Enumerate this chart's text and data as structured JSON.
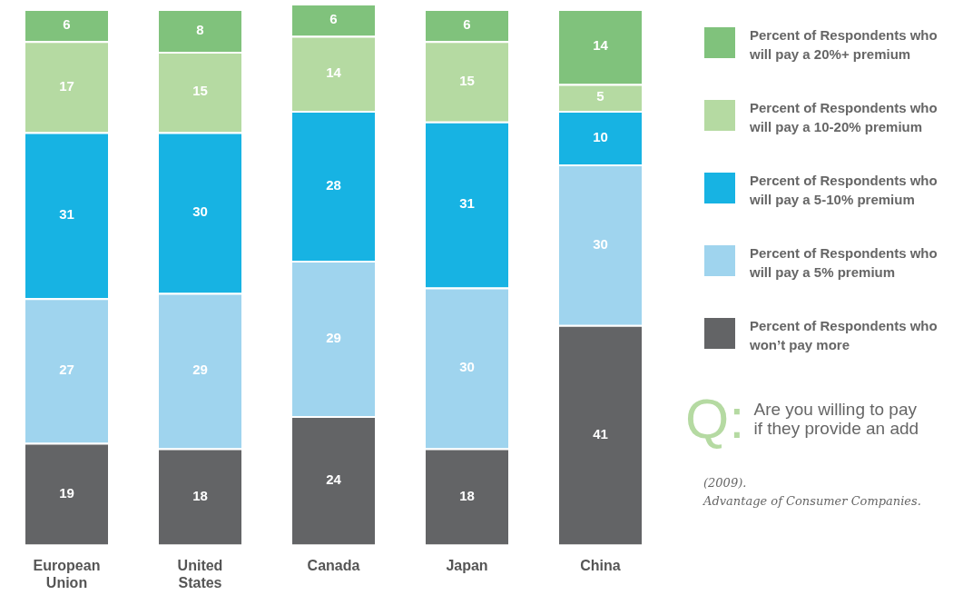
{
  "chart_data": {
    "type": "bar",
    "stacked": true,
    "data_labels": true,
    "grid": false,
    "legend": "right",
    "categories": [
      "European Union",
      "United States",
      "Canada",
      "Japan",
      "China"
    ],
    "series": [
      {
        "name": "Percent of Respondents who won’t pay more",
        "color": "#636466",
        "values": [
          19,
          18,
          24,
          18,
          41
        ]
      },
      {
        "name": "Percent of Respondents who will pay a 5% premium",
        "color": "#9fd4ee",
        "values": [
          27,
          29,
          29,
          30,
          30
        ]
      },
      {
        "name": "Percent of Respondents who will pay a 5-10% premium",
        "color": "#17b3e3",
        "values": [
          31,
          30,
          28,
          31,
          10
        ]
      },
      {
        "name": "Percent of Respondents who will pay a 10-20% premium",
        "color": "#b5daa2",
        "values": [
          17,
          15,
          14,
          15,
          5
        ]
      },
      {
        "name": "Percent of Respondents who will pay a 20%+ premium",
        "color": "#80c27c",
        "values": [
          6,
          8,
          6,
          6,
          14
        ]
      }
    ],
    "annotations": [
      "Q:",
      "Are you willing to pay\nif they provide an add",
      "(2009).\nAdvantage of Consumer Companies."
    ]
  }
}
